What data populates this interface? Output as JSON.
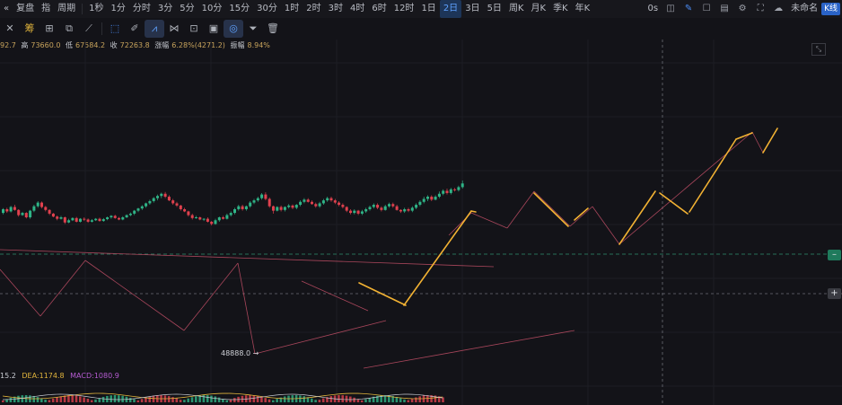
{
  "toolbar": {
    "back_label": "«",
    "replay_label": "复盘",
    "indicator_label": "指",
    "period_label": "周期",
    "intervals": [
      "1秒",
      "1分",
      "分时",
      "3分",
      "5分",
      "10分",
      "15分",
      "30分",
      "1时",
      "2时",
      "3时",
      "4时",
      "6时",
      "12时",
      "1日",
      "2日",
      "3日",
      "5日",
      "周K",
      "月K",
      "季K",
      "年K"
    ],
    "active_interval": "2日",
    "countdown": "0s",
    "layout_name": "未命名",
    "chart_type": "K线"
  },
  "ohlc": {
    "open_partial": "92.7",
    "high_label": "高",
    "high": "73660.0",
    "low_label": "低",
    "low": "67584.2",
    "close_label": "收",
    "close": "72263.8",
    "change_label": "涨幅",
    "change": "6.28%(4271.2)",
    "amp_label": "振幅",
    "amp": "8.94%"
  },
  "macd": {
    "dif": "15.2",
    "dea_label": "DEA:",
    "dea": "1174.8",
    "macd_label": "MACD:",
    "macd": "1080.9"
  },
  "low_marker": "48888.0",
  "drawtools": [
    "x-icon",
    "fibonacci-icon",
    "crosshair-icon",
    "copy-icon",
    "line-icon",
    "box-icon",
    "pencil-icon",
    "pattern-icon",
    "lock-icon",
    "note-icon",
    "magnet-icon",
    "filter-icon",
    "trash-icon"
  ],
  "colors": {
    "up": "#2fb487",
    "down": "#e0414e",
    "projection": "#f2b233",
    "trendline": "#c34f67"
  },
  "candles": [
    [
      312,
      322,
      308,
      325
    ],
    [
      322,
      316,
      312,
      326
    ],
    [
      316,
      328,
      313,
      331
    ],
    [
      328,
      320,
      318,
      334
    ],
    [
      320,
      306,
      302,
      322
    ],
    [
      306,
      312,
      304,
      315
    ],
    [
      312,
      300,
      297,
      314
    ],
    [
      300,
      318,
      296,
      320
    ],
    [
      318,
      330,
      314,
      334
    ],
    [
      330,
      340,
      326,
      344
    ],
    [
      340,
      328,
      324,
      343
    ],
    [
      328,
      320,
      316,
      331
    ],
    [
      320,
      310,
      306,
      322
    ],
    [
      310,
      302,
      300,
      312
    ],
    [
      302,
      296,
      292,
      305
    ],
    [
      296,
      300,
      294,
      304
    ],
    [
      300,
      286,
      282,
      302
    ],
    [
      286,
      292,
      284,
      296
    ],
    [
      292,
      298,
      290,
      300
    ],
    [
      298,
      288,
      286,
      301
    ],
    [
      288,
      296,
      286,
      298
    ],
    [
      296,
      294,
      290,
      300
    ],
    [
      294,
      288,
      285,
      297
    ],
    [
      288,
      292,
      286,
      295
    ],
    [
      292,
      296,
      290,
      298
    ],
    [
      296,
      290,
      288,
      299
    ],
    [
      290,
      295,
      288,
      298
    ],
    [
      295,
      300,
      292,
      302
    ],
    [
      300,
      304,
      296,
      306
    ],
    [
      304,
      298,
      296,
      307
    ],
    [
      298,
      294,
      292,
      301
    ],
    [
      294,
      300,
      292,
      303
    ],
    [
      300,
      306,
      298,
      308
    ],
    [
      306,
      310,
      303,
      313
    ],
    [
      310,
      318,
      306,
      320
    ],
    [
      318,
      324,
      314,
      326
    ],
    [
      324,
      330,
      320,
      333
    ],
    [
      330,
      338,
      326,
      340
    ],
    [
      338,
      344,
      334,
      348
    ],
    [
      344,
      352,
      340,
      355
    ],
    [
      352,
      358,
      346,
      362
    ],
    [
      358,
      364,
      352,
      367
    ],
    [
      364,
      356,
      352,
      369
    ],
    [
      356,
      346,
      344,
      360
    ],
    [
      346,
      338,
      334,
      350
    ],
    [
      338,
      332,
      328,
      342
    ],
    [
      332,
      322,
      318,
      334
    ],
    [
      322,
      316,
      314,
      326
    ],
    [
      316,
      306,
      302,
      318
    ],
    [
      306,
      298,
      294,
      310
    ],
    [
      298,
      300,
      296,
      304
    ],
    [
      300,
      294,
      292,
      302
    ],
    [
      294,
      296,
      290,
      298
    ],
    [
      296,
      288,
      286,
      300
    ],
    [
      288,
      282,
      278,
      290
    ],
    [
      282,
      292,
      280,
      296
    ],
    [
      292,
      300,
      288,
      302
    ],
    [
      300,
      296,
      294,
      304
    ],
    [
      296,
      306,
      294,
      310
    ],
    [
      306,
      312,
      302,
      316
    ],
    [
      312,
      322,
      308,
      326
    ],
    [
      322,
      330,
      318,
      334
    ],
    [
      330,
      322,
      318,
      334
    ],
    [
      322,
      330,
      318,
      332
    ],
    [
      330,
      340,
      326,
      344
    ],
    [
      340,
      346,
      336,
      350
    ],
    [
      346,
      352,
      342,
      356
    ],
    [
      352,
      362,
      348,
      366
    ],
    [
      362,
      350,
      346,
      368
    ],
    [
      350,
      330,
      326,
      354
    ],
    [
      330,
      318,
      310,
      332
    ],
    [
      318,
      328,
      316,
      330
    ],
    [
      328,
      320,
      316,
      332
    ],
    [
      320,
      328,
      316,
      330
    ],
    [
      328,
      332,
      324,
      336
    ],
    [
      332,
      326,
      322,
      335
    ],
    [
      326,
      334,
      322,
      336
    ],
    [
      334,
      342,
      330,
      346
    ],
    [
      342,
      348,
      338,
      352
    ],
    [
      348,
      342,
      340,
      352
    ],
    [
      342,
      336,
      334,
      346
    ],
    [
      336,
      330,
      326,
      340
    ],
    [
      330,
      338,
      326,
      342
    ],
    [
      338,
      346,
      334,
      350
    ],
    [
      346,
      352,
      342,
      356
    ],
    [
      352,
      346,
      342,
      356
    ],
    [
      346,
      340,
      336,
      350
    ],
    [
      340,
      334,
      330,
      344
    ],
    [
      334,
      328,
      324,
      338
    ],
    [
      328,
      318,
      314,
      330
    ],
    [
      318,
      312,
      308,
      322
    ],
    [
      312,
      318,
      308,
      322
    ],
    [
      318,
      310,
      306,
      320
    ],
    [
      310,
      316,
      306,
      320
    ],
    [
      316,
      322,
      312,
      326
    ],
    [
      322,
      328,
      318,
      332
    ],
    [
      328,
      334,
      324,
      338
    ],
    [
      334,
      326,
      322,
      338
    ],
    [
      326,
      320,
      316,
      330
    ],
    [
      320,
      330,
      318,
      334
    ],
    [
      330,
      336,
      326,
      340
    ],
    [
      336,
      330,
      326,
      340
    ],
    [
      330,
      320,
      318,
      334
    ],
    [
      320,
      316,
      312,
      322
    ],
    [
      316,
      322,
      312,
      326
    ],
    [
      322,
      318,
      314,
      326
    ],
    [
      318,
      326,
      314,
      330
    ],
    [
      326,
      334,
      322,
      338
    ],
    [
      334,
      342,
      330,
      346
    ],
    [
      342,
      350,
      338,
      356
    ],
    [
      350,
      356,
      344,
      360
    ],
    [
      356,
      348,
      344,
      360
    ],
    [
      348,
      356,
      346,
      360
    ],
    [
      356,
      364,
      352,
      370
    ],
    [
      364,
      372,
      360,
      376
    ],
    [
      372,
      366,
      362,
      378
    ],
    [
      366,
      376,
      362,
      380
    ],
    [
      376,
      374,
      370,
      380
    ],
    [
      374,
      382,
      370,
      386
    ],
    [
      382,
      392,
      378,
      400
    ]
  ]
}
